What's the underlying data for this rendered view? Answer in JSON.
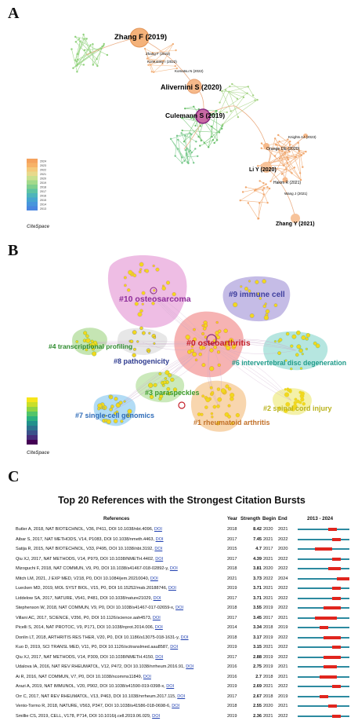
{
  "panel_labels": {
    "a": "A",
    "b": "B",
    "c": "C"
  },
  "panel_a": {
    "nodes": [
      {
        "label": "Zhang F (2019)",
        "big": true
      },
      {
        "label": "Zhang F (2023)",
        "big": false
      },
      {
        "label": "Korsunsky I (2022)",
        "big": false
      },
      {
        "label": "Komatsu N (2022)",
        "big": false
      },
      {
        "label": "Alivernini S (2020)",
        "big": true
      },
      {
        "label": "Culemann S (2019)",
        "big": true
      },
      {
        "label": "Knights AJ (2023)",
        "big": false
      },
      {
        "label": "Orange DE (2020)",
        "big": false
      },
      {
        "label": "Li Y (2020)",
        "big": true
      },
      {
        "label": "Hakim R (2021)",
        "big": false
      },
      {
        "label": "Wang J (2021)",
        "big": false
      },
      {
        "label": "Zhang Y (2021)",
        "big": true
      }
    ],
    "legend_years": [
      "2024",
      "2023",
      "2022",
      "2021",
      "2020",
      "2019",
      "2018",
      "2017",
      "2016",
      "2015",
      "2014",
      "2013"
    ],
    "legend_colors": [
      "#f5a25d",
      "#f7b267",
      "#f4c97a",
      "#e8d98c",
      "#c9e08f",
      "#a3d98b",
      "#7fcf8e",
      "#5fc3a2",
      "#4eb5bb",
      "#47a5cf",
      "#4896dc",
      "#4a86e0"
    ],
    "brand": "CiteSpace"
  },
  "panel_b": {
    "clusters": [
      {
        "label": "#10 osteosarcoma",
        "color": "#8e2d9a"
      },
      {
        "label": "#9 immune cell",
        "color": "#3f3f9e"
      },
      {
        "label": "#0 osteoarthritis",
        "color": "#c4202a"
      },
      {
        "label": "#4 transcriptional profiling",
        "color": "#2e8b2e"
      },
      {
        "label": "#8 pathogenicity",
        "color": "#2d3a8f"
      },
      {
        "label": "#6 intervertebral disc degeneration",
        "color": "#1f9b8a"
      },
      {
        "label": "#3 paraspeckles",
        "color": "#3a9a2a"
      },
      {
        "label": "#2 spinal cord injury",
        "color": "#b9b21c"
      },
      {
        "label": "#7 single-cell genomics",
        "color": "#2e6bb8"
      },
      {
        "label": "#1 rheumatoid arthritis",
        "color": "#c2722a"
      }
    ],
    "legend_colors": [
      "#f6e51b",
      "#c9df2a",
      "#8fd444",
      "#52c569",
      "#2ab07f",
      "#21918c",
      "#2c728e",
      "#3b528b",
      "#472d7b",
      "#440154"
    ],
    "brand": "CiteSpace"
  },
  "panel_c": {
    "title": "Top 20 References with the Strongest Citation Bursts",
    "headers": {
      "references": "References",
      "year": "Year",
      "strength": "Strength",
      "begin": "Begin",
      "end": "End",
      "range": "2013 - 2024"
    },
    "axis_start": 2013,
    "axis_end": 2024,
    "rows": [
      {
        "ref": "Butler A, 2018, NAT BIOTECHNOL, V36, P411, DOI 10.1038/nbt.4096,",
        "doi": "DOI",
        "year": "2018",
        "strength": "8.42",
        "begin": "2020",
        "end": "2021",
        "b": 2020,
        "e": 2021
      },
      {
        "ref": "Aibar S, 2017, NAT METHODS, V14, P1083, DOI 10.1038/nmeth.4463,",
        "doi": "DOI",
        "year": "2017",
        "strength": "7.45",
        "begin": "2021",
        "end": "2022",
        "b": 2021,
        "e": 2022
      },
      {
        "ref": "Satija R, 2015, NAT BIOTECHNOL, V33, P495, DOI 10.1038/nbt.3192,",
        "doi": "DOI",
        "year": "2015",
        "strength": "4.7",
        "begin": "2017",
        "end": "2020",
        "b": 2017,
        "e": 2020
      },
      {
        "ref": "Qiu XJ, 2017, NAT METHODS, V14, P979, DOI 10.1038/NMETH.4402,",
        "doi": "DOI",
        "year": "2017",
        "strength": "4.39",
        "begin": "2021",
        "end": "2022",
        "b": 2021,
        "e": 2022
      },
      {
        "ref": "Mizoguchi F, 2018, NAT COMMUN, V9, P0, DOI 10.1038/s41467-018-02892-y,",
        "doi": "DOI",
        "year": "2018",
        "strength": "3.81",
        "begin": "2020",
        "end": "2022",
        "b": 2020,
        "e": 2022
      },
      {
        "ref": "Mitch LM, 2021, J EXP MED, V218, P0, DOI 10.1084/jem.20210040,",
        "doi": "DOI",
        "year": "2021",
        "strength": "3.73",
        "begin": "2022",
        "end": "2024",
        "b": 2022,
        "e": 2024
      },
      {
        "ref": "Luecken MD, 2019, MOL SYST BIOL, V15, P0, DOI 10.15252/msb.20188746,",
        "doi": "DOI",
        "year": "2019",
        "strength": "3.71",
        "begin": "2021",
        "end": "2022",
        "b": 2021,
        "e": 2022
      },
      {
        "ref": "Liddelow SA, 2017, NATURE, V541, P481, DOI 10.1038/nature21029,",
        "doi": "DOI",
        "year": "2017",
        "strength": "3.71",
        "begin": "2021",
        "end": "2022",
        "b": 2021,
        "e": 2022
      },
      {
        "ref": "Stephenson W, 2018, NAT COMMUN, V9, P0, DOI 10.1038/s41467-017-02659-x,",
        "doi": "DOI",
        "year": "2018",
        "strength": "3.55",
        "begin": "2019",
        "end": "2022",
        "b": 2019,
        "e": 2022
      },
      {
        "ref": "Villani AC, 2017, SCIENCE, V356, P0, DOI 10.1126/science.aah4573,",
        "doi": "DOI",
        "year": "2017",
        "strength": "3.45",
        "begin": "2017",
        "end": "2021",
        "b": 2017,
        "e": 2021
      },
      {
        "ref": "Picelli S, 2014, NAT PROTOC, V9, P171, DOI 10.1038/nprot.2014.006,",
        "doi": "DOI",
        "year": "2014",
        "strength": "3.34",
        "begin": "2018",
        "end": "2019",
        "b": 2018,
        "e": 2019
      },
      {
        "ref": "Donlin LT, 2018, ARTHRITIS RES THER, V20, P0, DOI 10.1186/s13075-018-1631-y,",
        "doi": "DOI",
        "year": "2018",
        "strength": "3.17",
        "begin": "2019",
        "end": "2022",
        "b": 2019,
        "e": 2022
      },
      {
        "ref": "Kuo D, 2019, SCI TRANSL MED, V11, P0, DOI 10.1126/scitranslmed.aau8587,",
        "doi": "DOI",
        "year": "2019",
        "strength": "3.15",
        "begin": "2021",
        "end": "2022",
        "b": 2021,
        "e": 2022
      },
      {
        "ref": "Qiu XJ, 2017, NAT METHODS, V14, P309, DOI 10.1038/NMETH.4150,",
        "doi": "DOI",
        "year": "2017",
        "strength": "2.88",
        "begin": "2019",
        "end": "2022",
        "b": 2019,
        "e": 2022
      },
      {
        "ref": "Udalova IA, 2016, NAT REV RHEUMATOL, V12, P472, DOI 10.1038/nrrheum.2016.91,",
        "doi": "DOI",
        "year": "2016",
        "strength": "2.75",
        "begin": "2019",
        "end": "2021",
        "b": 2019,
        "e": 2021
      },
      {
        "ref": "Ai R, 2016, NAT COMMUN, V7, P0, DOI 10.1038/ncomms11849,",
        "doi": "DOI",
        "year": "2016",
        "strength": "2.7",
        "begin": "2018",
        "end": "2021",
        "b": 2018,
        "e": 2021
      },
      {
        "ref": "Arazi A, 2019, NAT IMMUNOL, V20, P902, DOI 10.1038/s41590-019-0398-x,",
        "doi": "DOI",
        "year": "2019",
        "strength": "2.69",
        "begin": "2021",
        "end": "2022",
        "b": 2021,
        "e": 2022
      },
      {
        "ref": "Orr C, 2017, NAT REV RHEUMATOL, V13, P463, DOI 10.1038/nrrheum.2017.115,",
        "doi": "DOI",
        "year": "2017",
        "strength": "2.67",
        "begin": "2018",
        "end": "2019",
        "b": 2018,
        "e": 2019
      },
      {
        "ref": "Vento-Tormo R, 2018, NATURE, V563, P347, DOI 10.1038/s41586-018-0698-6,",
        "doi": "DOI",
        "year": "2018",
        "strength": "2.55",
        "begin": "2020",
        "end": "2021",
        "b": 2020,
        "e": 2021
      },
      {
        "ref": "Smillie CS, 2019, CELL, V178, P714, DOI 10.1016/j.cell.2019.06.029,",
        "doi": "DOI",
        "year": "2019",
        "strength": "2.36",
        "begin": "2021",
        "end": "2022",
        "b": 2021,
        "e": 2022
      }
    ]
  }
}
